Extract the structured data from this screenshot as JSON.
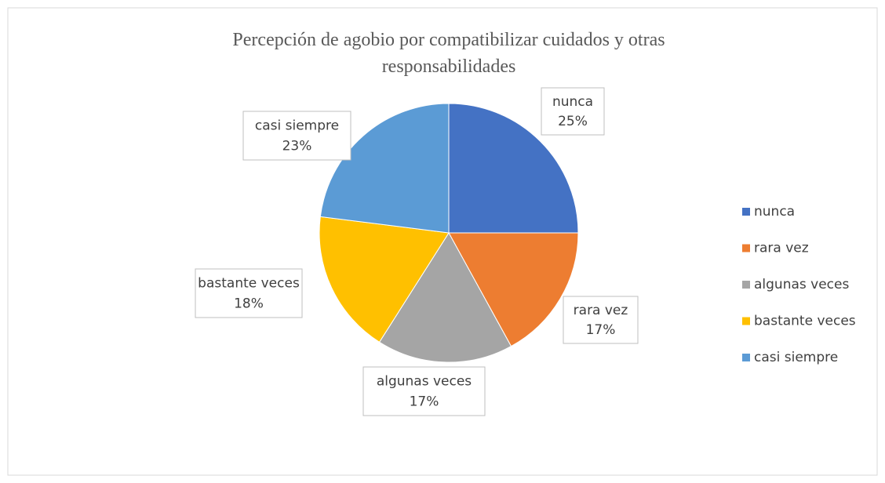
{
  "chart_data": {
    "type": "pie",
    "title": "Percepción de agobio por compatibilizar cuidados y otras responsabilidades",
    "categories": [
      "nunca",
      "rara vez",
      "algunas veces",
      "bastante veces",
      "casi siempre"
    ],
    "values": [
      25,
      17,
      17,
      18,
      23
    ],
    "value_labels": [
      "25%",
      "17%",
      "17%",
      "18%",
      "23%"
    ],
    "colors": [
      "#4472c4",
      "#ed7d31",
      "#a5a5a5",
      "#ffc000",
      "#5b9bd5"
    ],
    "legend": "right"
  }
}
